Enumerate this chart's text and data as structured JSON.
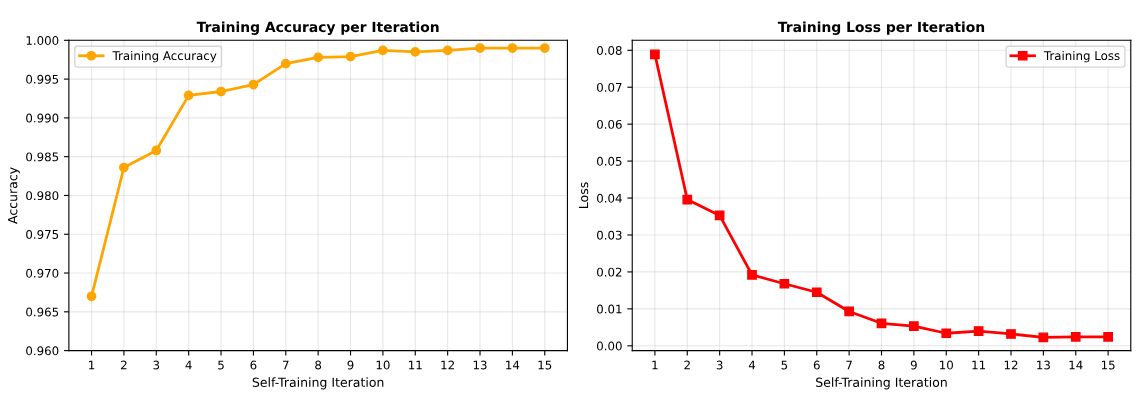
{
  "chart_data": [
    {
      "type": "line",
      "title": "Training Accuracy per Iteration",
      "xlabel": "Self-Training Iteration",
      "ylabel": "Accuracy",
      "x": [
        1,
        2,
        3,
        4,
        5,
        6,
        7,
        8,
        9,
        10,
        11,
        12,
        13,
        14,
        15
      ],
      "xlim": [
        0.3,
        15.7
      ],
      "xticks": [
        1,
        2,
        3,
        4,
        5,
        6,
        7,
        8,
        9,
        10,
        11,
        12,
        13,
        14,
        15
      ],
      "ylim": [
        0.96,
        1.0
      ],
      "yticks": [
        {
          "value": 0.96,
          "label": "0.960"
        },
        {
          "value": 0.965,
          "label": "0.965"
        },
        {
          "value": 0.97,
          "label": "0.970"
        },
        {
          "value": 0.975,
          "label": "0.975"
        },
        {
          "value": 0.98,
          "label": "0.980"
        },
        {
          "value": 0.985,
          "label": "0.985"
        },
        {
          "value": 0.99,
          "label": "0.990"
        },
        {
          "value": 0.995,
          "label": "0.995"
        },
        {
          "value": 1.0,
          "label": "1.000"
        }
      ],
      "grid": true,
      "legend": "top left",
      "marker": "circle",
      "line_style": "solid",
      "series": [
        {
          "name": "Training Accuracy",
          "color": "#ffa500",
          "values": [
            0.967,
            0.9836,
            0.9858,
            0.9929,
            0.9934,
            0.9943,
            0.997,
            0.9978,
            0.9979,
            0.9987,
            0.9985,
            0.9987,
            0.999,
            0.999,
            0.999
          ]
        }
      ]
    },
    {
      "type": "line",
      "title": "Training Loss per Iteration",
      "xlabel": "Self-Training Iteration",
      "ylabel": "Loss",
      "x": [
        1,
        2,
        3,
        4,
        5,
        6,
        7,
        8,
        9,
        10,
        11,
        12,
        13,
        14,
        15
      ],
      "xlim": [
        0.3,
        15.7
      ],
      "xticks": [
        1,
        2,
        3,
        4,
        5,
        6,
        7,
        8,
        9,
        10,
        11,
        12,
        13,
        14,
        15
      ],
      "ylim": [
        -0.0013,
        0.0827
      ],
      "yticks": [
        {
          "value": 0,
          "label": "0.00"
        },
        {
          "value": 0.01,
          "label": "0.01"
        },
        {
          "value": 0.02,
          "label": "0.02"
        },
        {
          "value": 0.03,
          "label": "0.03"
        },
        {
          "value": 0.04,
          "label": "0.04"
        },
        {
          "value": 0.05,
          "label": "0.05"
        },
        {
          "value": 0.06,
          "label": "0.06"
        },
        {
          "value": 0.07,
          "label": "0.07"
        },
        {
          "value": 0.08,
          "label": "0.08"
        }
      ],
      "grid": true,
      "legend": "top right",
      "marker": "square",
      "line_style": "solid",
      "series": [
        {
          "name": "Training Loss",
          "color": "#ff0000",
          "values": [
            0.0789,
            0.0396,
            0.0353,
            0.0192,
            0.0168,
            0.0145,
            0.0093,
            0.0061,
            0.0053,
            0.0034,
            0.004,
            0.0032,
            0.0023,
            0.0024,
            0.0024
          ]
        }
      ]
    }
  ]
}
